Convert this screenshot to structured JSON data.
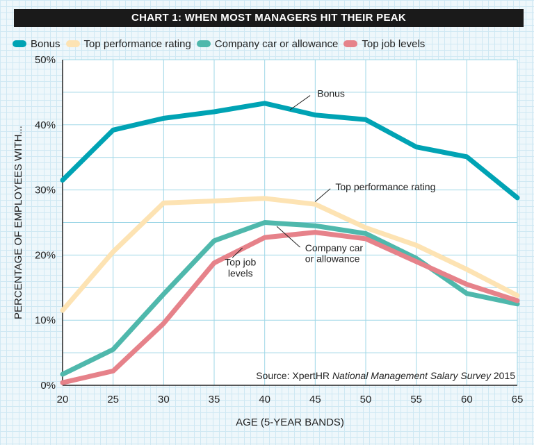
{
  "title": "CHART 1: WHEN MOST MANAGERS HIT THEIR PEAK",
  "source_prefix": "Source: XpertHR ",
  "source_italic": "National Management Salary Survey",
  "source_suffix": " 2015",
  "colors": {
    "Bonus": "#00a3b4",
    "Top performance rating": "#fde3b3",
    "Company car or allowance": "#4fb8ac",
    "Top job levels": "#e6828a"
  },
  "chart_data": {
    "type": "line",
    "xlabel": "AGE (5-YEAR BANDS)",
    "ylabel": "PERCENTAGE OF EMPLOYEES WITH...",
    "ylim": [
      0,
      50
    ],
    "yticks": [
      0,
      10,
      20,
      30,
      40,
      50
    ],
    "ytick_labels": [
      "0%",
      "10%",
      "20%",
      "30%",
      "40%",
      "50%"
    ],
    "x": [
      20,
      25,
      30,
      35,
      40,
      45,
      50,
      55,
      60,
      65
    ],
    "xtick_labels": [
      "20",
      "25",
      "30",
      "35",
      "40",
      "45",
      "50",
      "55",
      "60",
      "65"
    ],
    "grid": true,
    "legend_position": "top",
    "series": [
      {
        "name": "Bonus",
        "values": [
          31.5,
          39.2,
          41,
          42,
          43.3,
          41.5,
          40.8,
          36.6,
          35.1,
          28.8
        ]
      },
      {
        "name": "Top performance rating",
        "values": [
          11.5,
          20.5,
          28,
          28.3,
          28.7,
          27.8,
          24.2,
          21.5,
          17.8,
          13.8
        ]
      },
      {
        "name": "Company car or allowance",
        "values": [
          1.7,
          5.5,
          14,
          22.2,
          25,
          24.5,
          23.3,
          19.5,
          14.1,
          12.5
        ]
      },
      {
        "name": "Top job levels",
        "values": [
          0.4,
          2.2,
          9.5,
          18.8,
          22.7,
          23.5,
          22.5,
          19,
          15.5,
          13
        ]
      }
    ],
    "annotations": [
      {
        "text": "Bonus",
        "series": 0
      },
      {
        "text": "Top performance rating",
        "series": 1
      },
      {
        "text": "Company car or allowance",
        "series": 2,
        "lines": [
          "Company car",
          "or allowance"
        ]
      },
      {
        "text": "Top job levels",
        "series": 3,
        "lines": [
          "Top job",
          "levels"
        ]
      }
    ]
  }
}
